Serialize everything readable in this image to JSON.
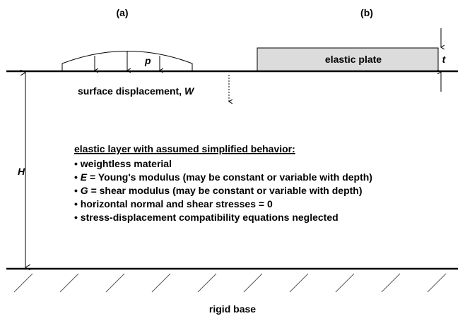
{
  "panels": {
    "a": "(a)",
    "b": "(b)"
  },
  "load": {
    "symbol": "p"
  },
  "plate": {
    "label": "elastic plate",
    "thickness": "t"
  },
  "displacement": {
    "label": "surface displacement, ",
    "symbol": "W"
  },
  "layer": {
    "thickness": "H",
    "heading": "elastic layer with assumed simplified behavior:",
    "bullets": [
      [
        {
          "text": "• weightless material"
        }
      ],
      [
        {
          "text": "• "
        },
        {
          "text": "E",
          "italic": true
        },
        {
          "text": " = Young's modulus (may be constant or variable with depth)"
        }
      ],
      [
        {
          "text": "• "
        },
        {
          "text": "G",
          "italic": true
        },
        {
          "text": " = shear modulus (may be constant or variable with depth)"
        }
      ],
      [
        {
          "text": "• horizontal normal and shear stresses = 0"
        }
      ],
      [
        {
          "text": "• stress-displacement compatibility equations neglected"
        }
      ]
    ]
  },
  "base": {
    "label": "rigid base"
  }
}
